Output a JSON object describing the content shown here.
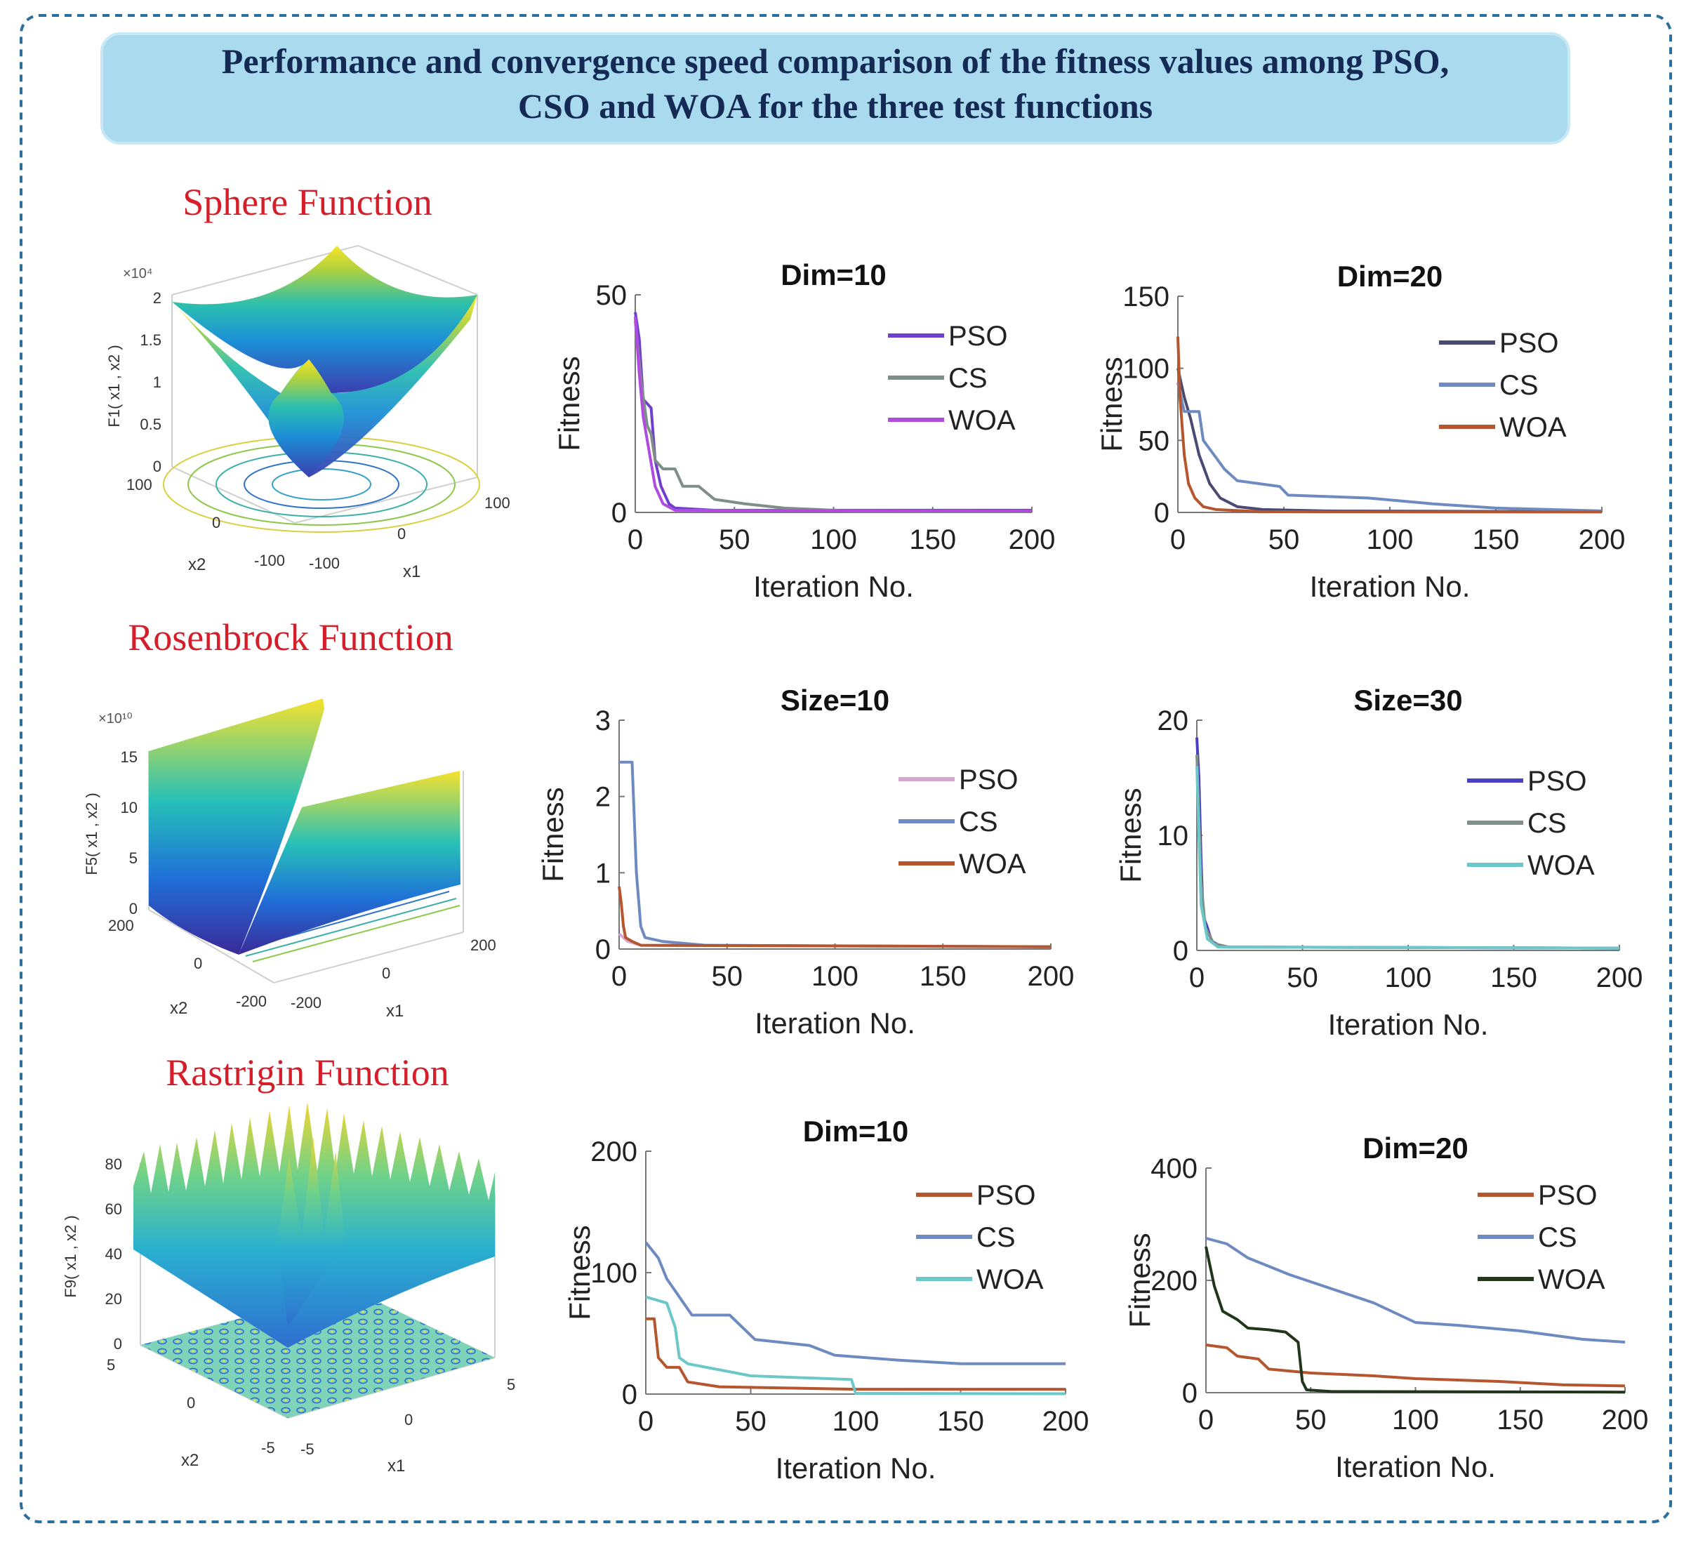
{
  "header": {
    "title_line1": "Performance and convergence speed comparison of the fitness values among PSO,",
    "title_line2": "CSO and WOA for the three test functions"
  },
  "functions": [
    {
      "name": "Sphere Function",
      "zlabel": "F1( x1 , x2 )",
      "zscale": "×10⁴",
      "zticks": [
        "0",
        "0.5",
        "1",
        "1.5",
        "2"
      ],
      "x2ticks": [
        "100",
        "0",
        "-100"
      ],
      "x1ticks": [
        "-100",
        "0",
        "100"
      ],
      "x1label": "x1",
      "x2label": "x2"
    },
    {
      "name": "Rosenbrock Function",
      "zlabel": "F5( x1 , x2 )",
      "zscale": "×10¹⁰",
      "zticks": [
        "0",
        "5",
        "10",
        "15"
      ],
      "x2ticks": [
        "200",
        "0",
        "-200"
      ],
      "x1ticks": [
        "-200",
        "0",
        "200"
      ],
      "x1label": "x1",
      "x2label": "x2"
    },
    {
      "name": "Rastrigin Function",
      "zlabel": "F9( x1 , x2 )",
      "zscale": "",
      "zticks": [
        "0",
        "20",
        "40",
        "60",
        "80"
      ],
      "x2ticks": [
        "5",
        "0",
        "-5"
      ],
      "x1ticks": [
        "-5",
        "0",
        "5"
      ],
      "x1label": "x1",
      "x2label": "x2"
    }
  ],
  "chart_data": [
    {
      "type": "line",
      "title": "Dim=10",
      "xlabel": "Iteration No.",
      "ylabel": "Fitness",
      "xlim": [
        0,
        200
      ],
      "ylim": [
        0,
        50
      ],
      "xticks": [
        0,
        50,
        100,
        150,
        200
      ],
      "yticks": [
        0,
        50
      ],
      "series": [
        {
          "name": "PSO",
          "color": "#6f3fd0",
          "points": [
            [
              0,
              46
            ],
            [
              2,
              40
            ],
            [
              4,
              26
            ],
            [
              8,
              24
            ],
            [
              10,
              12
            ],
            [
              13,
              6
            ],
            [
              17,
              2
            ],
            [
              20,
              1
            ],
            [
              40,
              0.5
            ],
            [
              200,
              0.5
            ]
          ]
        },
        {
          "name": "CS",
          "color": "#7f8f88",
          "points": [
            [
              0,
              44
            ],
            [
              3,
              30
            ],
            [
              6,
              20
            ],
            [
              8,
              18
            ],
            [
              10,
              12
            ],
            [
              14,
              10
            ],
            [
              20,
              10
            ],
            [
              24,
              6
            ],
            [
              32,
              6
            ],
            [
              40,
              3
            ],
            [
              55,
              2
            ],
            [
              75,
              1
            ],
            [
              110,
              0.3
            ],
            [
              200,
              0.2
            ]
          ]
        },
        {
          "name": "WOA",
          "color": "#b04be0",
          "points": [
            [
              0,
              45
            ],
            [
              2,
              32
            ],
            [
              4,
              22
            ],
            [
              7,
              14
            ],
            [
              10,
              6
            ],
            [
              14,
              2
            ],
            [
              20,
              0.5
            ],
            [
              200,
              0.3
            ]
          ]
        }
      ]
    },
    {
      "type": "line",
      "title": "Dim=20",
      "xlabel": "Iteration No.",
      "ylabel": "Fitness",
      "xlim": [
        0,
        200
      ],
      "ylim": [
        0,
        150
      ],
      "xticks": [
        0,
        50,
        100,
        150,
        200
      ],
      "yticks": [
        0,
        50,
        100,
        150
      ],
      "series": [
        {
          "name": "PSO",
          "color": "#4a4a72",
          "points": [
            [
              0,
              100
            ],
            [
              3,
              80
            ],
            [
              6,
              65
            ],
            [
              10,
              40
            ],
            [
              15,
              20
            ],
            [
              20,
              10
            ],
            [
              28,
              4
            ],
            [
              40,
              2
            ],
            [
              70,
              1
            ],
            [
              200,
              0.5
            ]
          ]
        },
        {
          "name": "CS",
          "color": "#6f8ac0",
          "points": [
            [
              0,
              90
            ],
            [
              3,
              70
            ],
            [
              10,
              70
            ],
            [
              12,
              50
            ],
            [
              18,
              38
            ],
            [
              22,
              30
            ],
            [
              28,
              22
            ],
            [
              48,
              18
            ],
            [
              52,
              12
            ],
            [
              90,
              10
            ],
            [
              120,
              6
            ],
            [
              150,
              3
            ],
            [
              200,
              1
            ]
          ]
        },
        {
          "name": "WOA",
          "color": "#b5562f",
          "points": [
            [
              0,
              122
            ],
            [
              1,
              80
            ],
            [
              3,
              40
            ],
            [
              5,
              20
            ],
            [
              8,
              10
            ],
            [
              12,
              4
            ],
            [
              18,
              2
            ],
            [
              40,
              0.5
            ],
            [
              200,
              0.3
            ]
          ]
        }
      ]
    },
    {
      "type": "line",
      "title": "Size=10",
      "xlabel": "Iteration No.",
      "ylabel": "Fitness",
      "xlim": [
        0,
        200
      ],
      "ylim": [
        0,
        3
      ],
      "xticks": [
        0,
        50,
        100,
        150,
        200
      ],
      "yticks": [
        0,
        1,
        2,
        3
      ],
      "series": [
        {
          "name": "PSO",
          "color": "#d7a8cf",
          "points": [
            [
              0,
              0.2
            ],
            [
              4,
              0.1
            ],
            [
              10,
              0.05
            ],
            [
              200,
              0.03
            ]
          ]
        },
        {
          "name": "CS",
          "color": "#6f8ac0",
          "points": [
            [
              0,
              2.45
            ],
            [
              6,
              2.45
            ],
            [
              8,
              1.0
            ],
            [
              10,
              0.3
            ],
            [
              12,
              0.15
            ],
            [
              20,
              0.1
            ],
            [
              40,
              0.05
            ],
            [
              200,
              0.03
            ]
          ]
        },
        {
          "name": "WOA",
          "color": "#b5562f",
          "points": [
            [
              0,
              0.82
            ],
            [
              1,
              0.6
            ],
            [
              2,
              0.3
            ],
            [
              3,
              0.15
            ],
            [
              6,
              0.1
            ],
            [
              10,
              0.05
            ],
            [
              200,
              0.03
            ]
          ]
        }
      ]
    },
    {
      "type": "line",
      "title": "Size=30",
      "xlabel": "Iteration No.",
      "ylabel": "Fitness",
      "xlim": [
        0,
        200
      ],
      "ylim": [
        0,
        20
      ],
      "xticks": [
        0,
        50,
        100,
        150,
        200
      ],
      "yticks": [
        0,
        10,
        20
      ],
      "series": [
        {
          "name": "PSO",
          "color": "#4b3fc2",
          "points": [
            [
              0,
              18.5
            ],
            [
              1,
              15
            ],
            [
              2,
              8
            ],
            [
              3,
              3
            ],
            [
              5,
              2
            ],
            [
              7,
              0.8
            ],
            [
              12,
              0.3
            ],
            [
              200,
              0.2
            ]
          ]
        },
        {
          "name": "CS",
          "color": "#7f8f88",
          "points": [
            [
              0,
              17
            ],
            [
              2,
              6
            ],
            [
              4,
              2
            ],
            [
              8,
              0.6
            ],
            [
              15,
              0.3
            ],
            [
              200,
              0.2
            ]
          ]
        },
        {
          "name": "WOA",
          "color": "#6cc7c8",
          "points": [
            [
              0,
              16
            ],
            [
              2,
              4
            ],
            [
              5,
              1
            ],
            [
              10,
              0.3
            ],
            [
              200,
              0.2
            ]
          ]
        }
      ]
    },
    {
      "type": "line",
      "title": "Dim=10",
      "xlabel": "Iteration No.",
      "ylabel": "Fitness",
      "xlim": [
        0,
        200
      ],
      "ylim": [
        0,
        200
      ],
      "xticks": [
        0,
        50,
        100,
        150,
        200
      ],
      "yticks": [
        0,
        100,
        200
      ],
      "series": [
        {
          "name": "PSO",
          "color": "#b5562f",
          "points": [
            [
              0,
              62
            ],
            [
              4,
              62
            ],
            [
              6,
              30
            ],
            [
              10,
              22
            ],
            [
              16,
              22
            ],
            [
              20,
              10
            ],
            [
              35,
              6
            ],
            [
              100,
              4
            ],
            [
              200,
              4
            ]
          ]
        },
        {
          "name": "CS",
          "color": "#6f8ac0",
          "points": [
            [
              0,
              125
            ],
            [
              6,
              112
            ],
            [
              10,
              95
            ],
            [
              18,
              75
            ],
            [
              22,
              65
            ],
            [
              40,
              65
            ],
            [
              52,
              45
            ],
            [
              78,
              40
            ],
            [
              90,
              32
            ],
            [
              120,
              28
            ],
            [
              150,
              25
            ],
            [
              200,
              25
            ]
          ]
        },
        {
          "name": "WOA",
          "color": "#6cc7c8",
          "points": [
            [
              0,
              80
            ],
            [
              10,
              75
            ],
            [
              14,
              55
            ],
            [
              16,
              30
            ],
            [
              20,
              25
            ],
            [
              35,
              20
            ],
            [
              50,
              15
            ],
            [
              98,
              12
            ],
            [
              100,
              0.5
            ],
            [
              200,
              0.3
            ]
          ]
        }
      ]
    },
    {
      "type": "line",
      "title": "Dim=20",
      "xlabel": "Iteration No.",
      "ylabel": "Fitness",
      "xlim": [
        0,
        200
      ],
      "ylim": [
        0,
        400
      ],
      "xticks": [
        0,
        50,
        100,
        150,
        200
      ],
      "yticks": [
        0,
        200,
        400
      ],
      "series": [
        {
          "name": "PSO",
          "color": "#b5562f",
          "points": [
            [
              0,
              85
            ],
            [
              10,
              80
            ],
            [
              15,
              65
            ],
            [
              25,
              60
            ],
            [
              30,
              42
            ],
            [
              50,
              35
            ],
            [
              80,
              30
            ],
            [
              100,
              25
            ],
            [
              140,
              20
            ],
            [
              170,
              14
            ],
            [
              200,
              12
            ]
          ]
        },
        {
          "name": "CS",
          "color": "#6f8ac0",
          "points": [
            [
              0,
              275
            ],
            [
              10,
              265
            ],
            [
              20,
              240
            ],
            [
              40,
              210
            ],
            [
              60,
              185
            ],
            [
              80,
              160
            ],
            [
              100,
              125
            ],
            [
              120,
              120
            ],
            [
              150,
              110
            ],
            [
              180,
              95
            ],
            [
              200,
              90
            ]
          ]
        },
        {
          "name": "WOA",
          "color": "#22361c",
          "points": [
            [
              0,
              260
            ],
            [
              4,
              190
            ],
            [
              8,
              145
            ],
            [
              15,
              130
            ],
            [
              20,
              115
            ],
            [
              30,
              112
            ],
            [
              38,
              108
            ],
            [
              44,
              90
            ],
            [
              46,
              20
            ],
            [
              48,
              5
            ],
            [
              60,
              2
            ],
            [
              200,
              1
            ]
          ]
        }
      ]
    }
  ]
}
